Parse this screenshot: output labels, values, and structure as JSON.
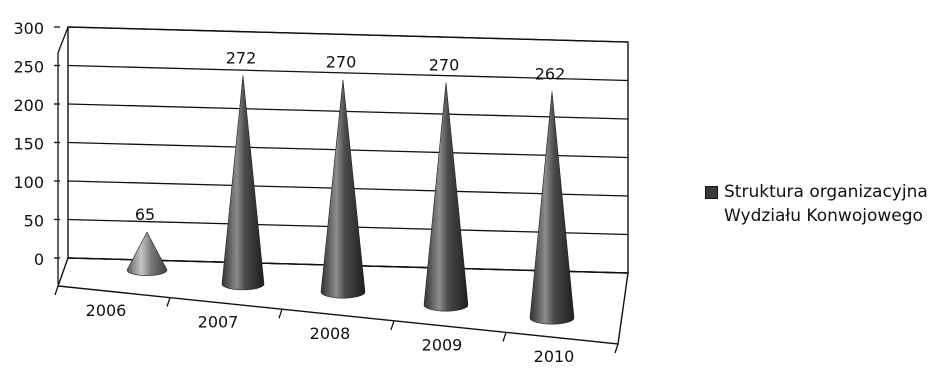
{
  "chart_data": {
    "type": "bar",
    "shape": "cone",
    "style": "3d",
    "title": "",
    "xlabel": "",
    "ylabel": "",
    "categories": [
      "2006",
      "2007",
      "2008",
      "2009",
      "2010"
    ],
    "series": [
      {
        "name": "Struktura organizacyjna Wydziału Konwojowego",
        "values": [
          65,
          272,
          270,
          270,
          262
        ]
      }
    ],
    "data_labels": [
      "65",
      "272",
      "270",
      "270",
      "262"
    ],
    "ylim": [
      0,
      300
    ],
    "yticks": [
      "0",
      "50",
      "100",
      "150",
      "200",
      "250",
      "300"
    ],
    "grid": true,
    "legend_position": "right",
    "colors": {
      "cone_dark": "#2e2e2e",
      "cone_light": "#9a9a9a",
      "first_cone_light": "#bdbdbd"
    }
  },
  "legend": {
    "line1": "Struktura organizacyjna",
    "line2": "Wydziału Konwojowego"
  }
}
